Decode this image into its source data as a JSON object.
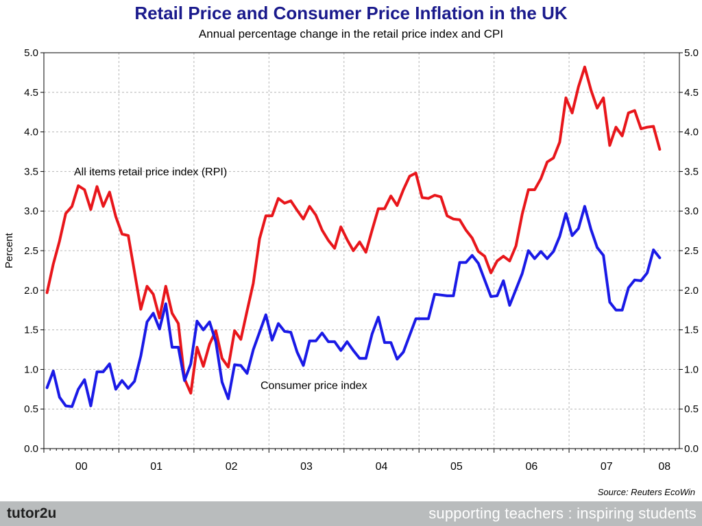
{
  "header": {
    "title": "Retail Price and Consumer Price Inflation in the UK",
    "subtitle": "Annual percentage change in the retail price index and CPI"
  },
  "source_note": "Source: Reuters EcoWin",
  "footer": {
    "brand": "tutor2u",
    "tagline": "supporting teachers : inspiring students"
  },
  "colors": {
    "title": "#1a1a8c",
    "rpi": "#e8161b",
    "cpi": "#1a1ae6",
    "footer_bg": "#b9bcbd"
  },
  "chart_data": {
    "type": "line",
    "title": "Retail Price and Consumer Price Inflation in the UK",
    "subtitle": "Annual percentage change in the retail price index and CPI",
    "ylabel": "Percent",
    "xlabel": "",
    "ylim": [
      0,
      5.0
    ],
    "yticks": [
      "0.0",
      "0.5",
      "1.0",
      "1.5",
      "2.0",
      "2.5",
      "3.0",
      "3.5",
      "4.0",
      "4.5",
      "5.0"
    ],
    "year_labels": [
      "00",
      "01",
      "02",
      "03",
      "04",
      "05",
      "06",
      "07",
      "08"
    ],
    "x": [
      "2000-01",
      "2000-02",
      "2000-03",
      "2000-04",
      "2000-05",
      "2000-06",
      "2000-07",
      "2000-08",
      "2000-09",
      "2000-10",
      "2000-11",
      "2000-12",
      "2001-01",
      "2001-02",
      "2001-03",
      "2001-04",
      "2001-05",
      "2001-06",
      "2001-07",
      "2001-08",
      "2001-09",
      "2001-10",
      "2001-11",
      "2001-12",
      "2002-01",
      "2002-02",
      "2002-03",
      "2002-04",
      "2002-05",
      "2002-06",
      "2002-07",
      "2002-08",
      "2002-09",
      "2002-10",
      "2002-11",
      "2002-12",
      "2003-01",
      "2003-02",
      "2003-03",
      "2003-04",
      "2003-05",
      "2003-06",
      "2003-07",
      "2003-08",
      "2003-09",
      "2003-10",
      "2003-11",
      "2003-12",
      "2004-01",
      "2004-02",
      "2004-03",
      "2004-04",
      "2004-05",
      "2004-06",
      "2004-07",
      "2004-08",
      "2004-09",
      "2004-10",
      "2004-11",
      "2004-12",
      "2005-01",
      "2005-02",
      "2005-03",
      "2005-04",
      "2005-05",
      "2005-06",
      "2005-07",
      "2005-08",
      "2005-09",
      "2005-10",
      "2005-11",
      "2005-12",
      "2006-01",
      "2006-02",
      "2006-03",
      "2006-04",
      "2006-05",
      "2006-06",
      "2006-07",
      "2006-08",
      "2006-09",
      "2006-10",
      "2006-11",
      "2006-12",
      "2007-01",
      "2007-02",
      "2007-03",
      "2007-04",
      "2007-05",
      "2007-06",
      "2007-07",
      "2007-08",
      "2007-09",
      "2007-10",
      "2007-11",
      "2007-12",
      "2008-01",
      "2008-02",
      "2008-03"
    ],
    "series": [
      {
        "name": "All items retail price index (RPI)",
        "color": "#e8161b",
        "values": [
          1.97,
          2.33,
          2.62,
          2.97,
          3.06,
          3.32,
          3.27,
          3.02,
          3.31,
          3.06,
          3.24,
          2.93,
          2.71,
          2.69,
          2.23,
          1.76,
          2.05,
          1.95,
          1.65,
          2.05,
          1.71,
          1.58,
          0.88,
          0.7,
          1.28,
          1.04,
          1.32,
          1.49,
          1.14,
          1.03,
          1.49,
          1.38,
          1.74,
          2.09,
          2.65,
          2.94,
          2.94,
          3.16,
          3.1,
          3.13,
          3.01,
          2.9,
          3.06,
          2.95,
          2.76,
          2.63,
          2.53,
          2.8,
          2.64,
          2.5,
          2.61,
          2.48,
          2.76,
          3.03,
          3.03,
          3.19,
          3.07,
          3.27,
          3.44,
          3.48,
          3.17,
          3.16,
          3.2,
          3.18,
          2.94,
          2.9,
          2.89,
          2.76,
          2.66,
          2.49,
          2.43,
          2.22,
          2.37,
          2.43,
          2.37,
          2.56,
          2.96,
          3.27,
          3.27,
          3.41,
          3.62,
          3.67,
          3.87,
          4.43,
          4.24,
          4.57,
          4.82,
          4.53,
          4.3,
          4.43,
          3.83,
          4.06,
          3.95,
          4.24,
          4.27,
          4.04,
          4.06,
          4.07,
          3.78
        ]
      },
      {
        "name": "Consumer price index",
        "color": "#1a1ae6",
        "values": [
          0.77,
          0.98,
          0.65,
          0.54,
          0.53,
          0.75,
          0.87,
          0.54,
          0.97,
          0.97,
          1.07,
          0.75,
          0.86,
          0.76,
          0.85,
          1.17,
          1.6,
          1.71,
          1.51,
          1.83,
          1.28,
          1.28,
          0.86,
          1.07,
          1.61,
          1.5,
          1.6,
          1.35,
          0.84,
          0.63,
          1.06,
          1.05,
          0.95,
          1.25,
          1.47,
          1.69,
          1.37,
          1.58,
          1.48,
          1.47,
          1.22,
          1.05,
          1.36,
          1.36,
          1.46,
          1.35,
          1.35,
          1.24,
          1.35,
          1.24,
          1.14,
          1.14,
          1.45,
          1.66,
          1.34,
          1.34,
          1.13,
          1.22,
          1.43,
          1.64,
          1.64,
          1.64,
          1.95,
          1.94,
          1.93,
          1.93,
          2.35,
          2.35,
          2.44,
          2.34,
          2.13,
          1.92,
          1.93,
          2.12,
          1.81,
          2.01,
          2.21,
          2.5,
          2.4,
          2.49,
          2.4,
          2.49,
          2.68,
          2.97,
          2.69,
          2.78,
          3.06,
          2.77,
          2.54,
          2.44,
          1.85,
          1.75,
          1.75,
          2.03,
          2.13,
          2.12,
          2.22,
          2.51,
          2.41
        ]
      }
    ],
    "annotations": [
      {
        "text": "All items retail price index (RPI)",
        "series": 0
      },
      {
        "text": "Consumer price index",
        "series": 1
      }
    ],
    "grid": true,
    "legend": "inline labels"
  }
}
